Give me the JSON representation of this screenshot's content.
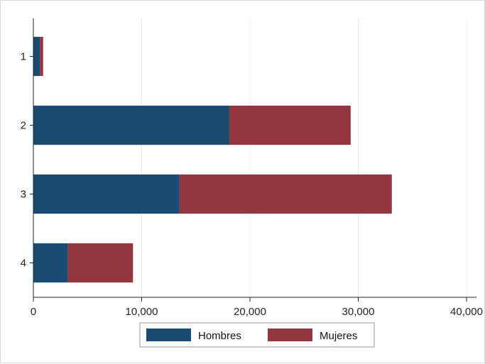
{
  "chart_data": {
    "type": "bar",
    "orientation": "horizontal",
    "stacked": true,
    "categories": [
      "1",
      "2",
      "3",
      "4"
    ],
    "series": [
      {
        "name": "Hombres",
        "color": "#1b4a72",
        "values": [
          600,
          18100,
          13500,
          3200
        ]
      },
      {
        "name": "Mujeres",
        "color": "#94363f",
        "values": [
          300,
          11200,
          19600,
          6000
        ]
      }
    ],
    "xlim": [
      0,
      40000
    ],
    "xticks": [
      0,
      10000,
      20000,
      30000,
      40000
    ],
    "xtick_labels": [
      "0",
      "10,000",
      "20,000",
      "30,000",
      "40,000"
    ],
    "grid": true,
    "legend_position": "bottom"
  }
}
